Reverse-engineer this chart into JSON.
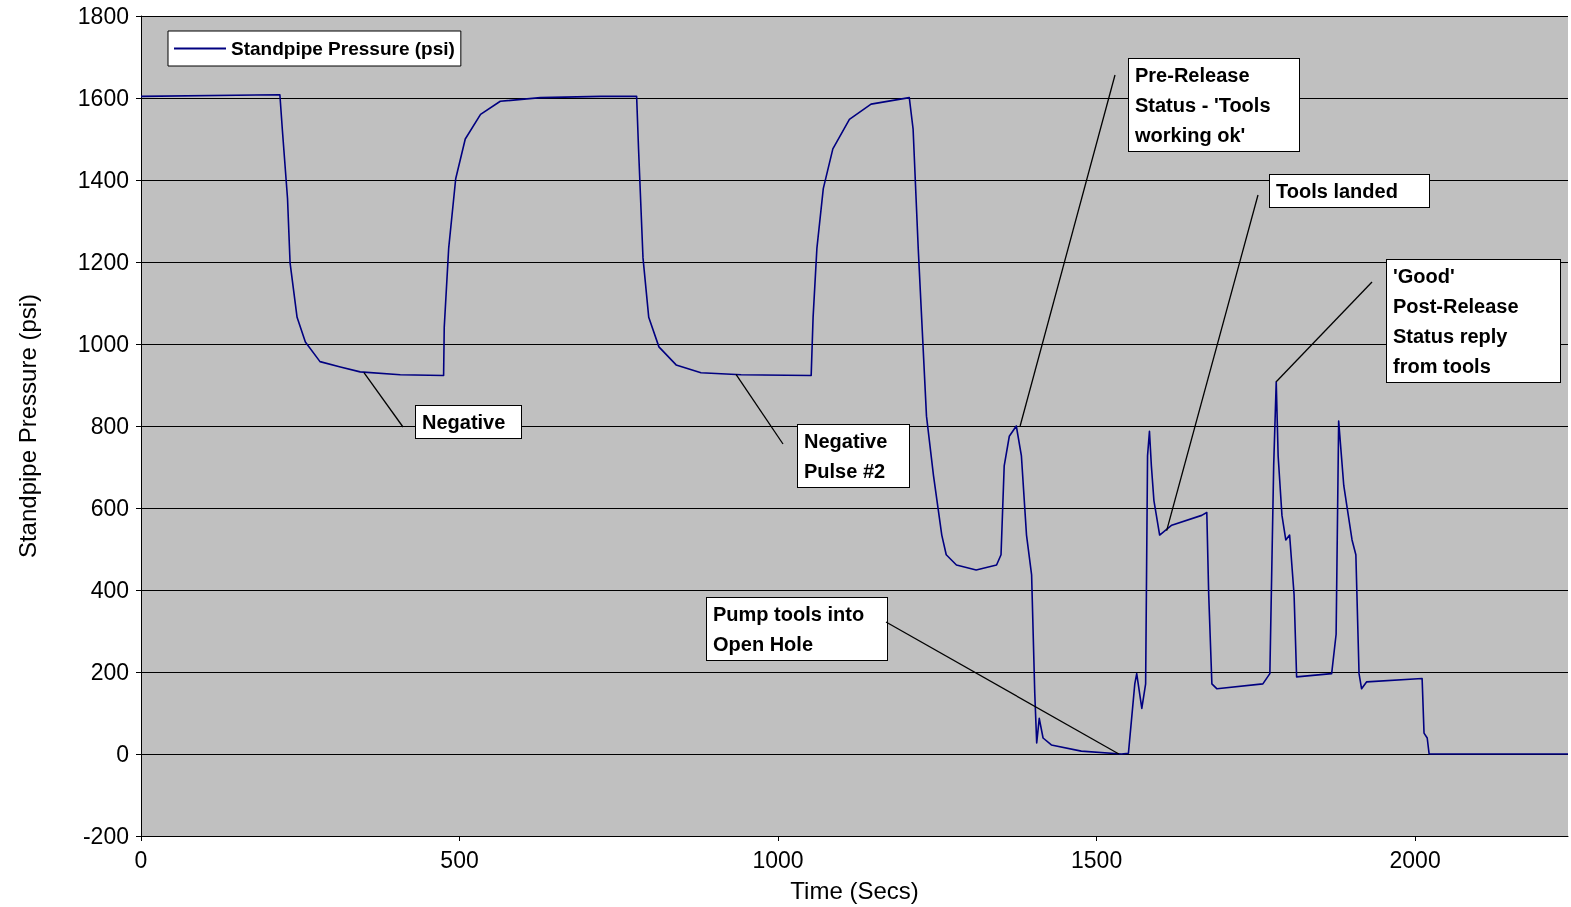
{
  "chart_data": {
    "type": "line",
    "xlabel": "Time (Secs)",
    "ylabel": "Standpipe Pressure (psi)",
    "xlim": [
      0,
      2240
    ],
    "xticks": [
      0,
      500,
      1000,
      1500,
      2000
    ],
    "ylim": [
      -200,
      1800
    ],
    "yticks": [
      -200,
      0,
      200,
      400,
      600,
      800,
      1000,
      1200,
      1400,
      1600,
      1800
    ],
    "grid": "y",
    "legend": "top left",
    "marker": "none",
    "line_style": "solid",
    "series": [
      {
        "name": "Standpipe Pressure (psi)",
        "color": "#000080",
        "x": [
          0,
          218,
          222,
          230,
          234,
          245,
          258,
          281,
          313,
          344,
          407,
          475,
          476,
          483,
          494,
          509,
          533,
          564,
          627,
          722,
          778,
          781,
          788,
          797,
          813,
          840,
          879,
          942,
          1052,
          1055,
          1061,
          1071,
          1086,
          1112,
          1146,
          1206,
          1212,
          1220,
          1233,
          1244,
          1257,
          1264,
          1280,
          1311,
          1343,
          1350,
          1355,
          1363,
          1374,
          1382,
          1390,
          1398,
          1403,
          1406,
          1410,
          1416,
          1429,
          1476,
          1539,
          1550,
          1560,
          1563,
          1571,
          1577,
          1580,
          1583,
          1586,
          1590,
          1599,
          1618,
          1665,
          1673,
          1676,
          1681,
          1689,
          1761,
          1772,
          1778,
          1782,
          1785,
          1791,
          1797,
          1803,
          1810,
          1814,
          1869,
          1876,
          1880,
          1888,
          1901,
          1907,
          1912,
          1916,
          1924,
          2011,
          2014,
          2019,
          2022,
          2240
        ],
        "values": [
          1604,
          1608,
          1520,
          1355,
          1198,
          1065,
          1005,
          957,
          944,
          932,
          925,
          923,
          1041,
          1234,
          1403,
          1500,
          1560,
          1592,
          1601,
          1604,
          1604,
          1476,
          1210,
          1065,
          993,
          949,
          930,
          925,
          923,
          1065,
          1234,
          1379,
          1476,
          1548,
          1585,
          1601,
          1524,
          1234,
          824,
          679,
          534,
          486,
          461,
          449,
          461,
          486,
          703,
          775,
          800,
          727,
          534,
          437,
          147,
          27,
          87,
          39,
          22,
          7,
          0,
          2,
          171,
          196,
          111,
          171,
          727,
          787,
          703,
          618,
          534,
          558,
          582,
          589,
          389,
          171,
          159,
          171,
          196,
          703,
          908,
          727,
          582,
          522,
          534,
          389,
          188,
          196,
          292,
          812,
          655,
          522,
          486,
          196,
          159,
          176,
          184,
          51,
          39,
          0,
          0
        ]
      }
    ],
    "annotations": [
      {
        "text": "Negative",
        "x": 350,
        "y": 930
      },
      {
        "text": "Negative Pulse #2",
        "x": 934,
        "y": 926
      },
      {
        "text": "Pump tools into Open Hole",
        "x": 1535,
        "y": 0
      },
      {
        "text": "Pre-Release Status - 'Tools working ok'",
        "x": 1380,
        "y": 800
      },
      {
        "text": "Tools landed",
        "x": 1610,
        "y": 545
      },
      {
        "text": "'Good' Post-Release Status reply from tools",
        "x": 1782,
        "y": 908
      }
    ]
  }
}
